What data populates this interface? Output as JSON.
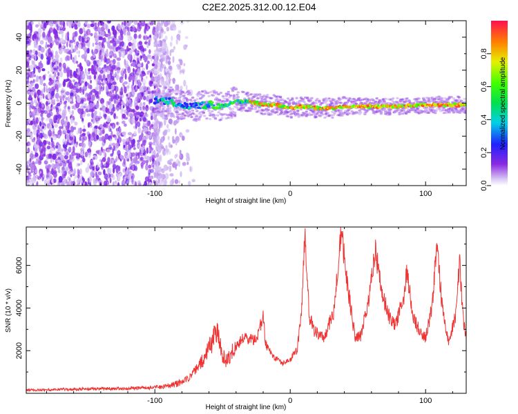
{
  "title": "C2E2.2025.312.00.12.E04",
  "chart_data": [
    {
      "type": "heatmap",
      "name": "spectrogram",
      "title": "C2E2.2025.312.00.12.E04",
      "xlabel": "Height of straight line (km)",
      "ylabel": "Frequency (Hz)",
      "xlim": [
        -195,
        130
      ],
      "ylim": [
        -50,
        50
      ],
      "xticks": [
        -100,
        0,
        100
      ],
      "yticks": [
        -40,
        -20,
        0,
        20,
        40
      ],
      "ridge": {
        "x": [
          -100,
          -90,
          -80,
          -70,
          -60,
          -50,
          -40,
          -30,
          -20,
          -10,
          0,
          10,
          20,
          30,
          40,
          60,
          80,
          100,
          130
        ],
        "freq": [
          2,
          1,
          -1,
          -2,
          -1,
          -2,
          1,
          1,
          -1,
          -1,
          -3,
          -2,
          -3,
          -3,
          -2,
          -2,
          -2,
          -1,
          -1
        ]
      },
      "noise_region_end_x": -100,
      "colorbar": {
        "label": "Normalized spectral amplitude",
        "range": [
          0.0,
          1.0
        ],
        "ticks": [
          "0.0",
          "0.2",
          "0.4",
          "0.6",
          "0.8"
        ],
        "tick_values": [
          0.0,
          0.2,
          0.4,
          0.6,
          0.8
        ]
      }
    },
    {
      "type": "line",
      "name": "snr",
      "xlabel": "Height of straight line (km)",
      "ylabel": "SNR (10 * v/v)",
      "xlim": [
        -195,
        130
      ],
      "ylim": [
        0,
        7800
      ],
      "xticks": [
        -100,
        0,
        100
      ],
      "yticks": [
        2000,
        4000,
        6000
      ],
      "series": [
        {
          "name": "SNR",
          "color": "#ee3333",
          "x": [
            -195,
            -170,
            -150,
            -130,
            -110,
            -95,
            -85,
            -75,
            -65,
            -58,
            -54,
            -50,
            -47,
            -42,
            -35,
            -25,
            -20,
            -18,
            -12,
            -5,
            0,
            5,
            8,
            10,
            11,
            14,
            18,
            25,
            32,
            36,
            38,
            42,
            48,
            52,
            58,
            63,
            66,
            72,
            78,
            84,
            86,
            90,
            95,
            100,
            105,
            108,
            112,
            117,
            122,
            125,
            128,
            130
          ],
          "y": [
            150,
            180,
            200,
            220,
            250,
            300,
            420,
            700,
            1500,
            2400,
            3100,
            1800,
            1500,
            2000,
            2600,
            2500,
            3600,
            2300,
            1700,
            1400,
            1600,
            2000,
            3500,
            6400,
            7500,
            3600,
            2900,
            2600,
            3800,
            6600,
            7400,
            5200,
            2600,
            2700,
            4500,
            6900,
            5300,
            3700,
            3200,
            4600,
            5900,
            3700,
            3000,
            2600,
            4100,
            7000,
            4300,
            2300,
            3600,
            6200,
            3400,
            2600
          ]
        }
      ]
    }
  ]
}
